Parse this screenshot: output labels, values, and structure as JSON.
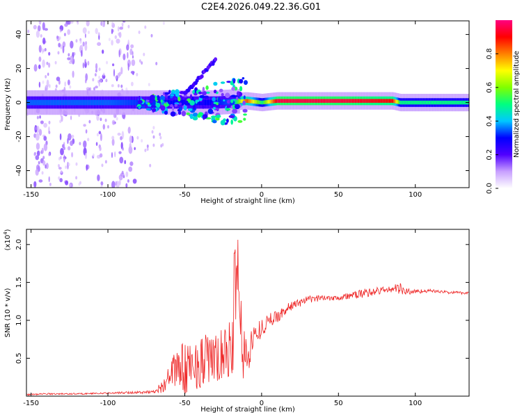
{
  "title": "C2E4.2026.049.22.36.G01",
  "chart_data": [
    {
      "type": "heatmap",
      "xlabel": "Height of straight line (km)",
      "ylabel": "Frequency (Hz)",
      "xlim": [
        -153,
        135
      ],
      "ylim": [
        -50,
        48
      ],
      "xticks": [
        -150,
        -100,
        -50,
        0,
        50,
        100
      ],
      "yticks": [
        -40,
        -20,
        0,
        20,
        40
      ],
      "colorbar": {
        "label": "Normalized spectral amplitude",
        "range": [
          0,
          1
        ],
        "ticks": [
          0.0,
          0.2,
          0.4,
          0.6,
          0.8
        ],
        "colors": [
          "#ffffff",
          "#c8a0ff",
          "#5000ff",
          "#0000ff",
          "#00c8ff",
          "#00ff80",
          "#80ff00",
          "#ffff00",
          "#ff8000",
          "#ff0000",
          "#ff0080"
        ]
      },
      "ridge": {
        "x": [
          -153,
          -100,
          -60,
          -40,
          -30,
          -20,
          -10,
          0,
          10,
          50,
          85,
          90,
          135
        ],
        "y": [
          0,
          0,
          0,
          0,
          0,
          0.5,
          1,
          0,
          1,
          1,
          1,
          0,
          0
        ],
        "amplitude": [
          0.35,
          0.35,
          0.3,
          0.3,
          0.3,
          0.35,
          0.85,
          0.5,
          0.95,
          0.95,
          0.9,
          0.5,
          0.5
        ]
      },
      "arc": {
        "x": [
          -50,
          -45,
          -40,
          -35,
          -30
        ],
        "y": [
          5,
          10,
          15,
          20,
          25
        ]
      }
    },
    {
      "type": "line",
      "xlabel": "Height of straight line (km)",
      "ylabel": "SNR (10 * v/v)",
      "scale_label": "(x10",
      "scale_exponent": "4",
      "scale_close": ")",
      "xlim": [
        -153,
        135
      ],
      "ylim": [
        0,
        2.2
      ],
      "xticks": [
        -150,
        -100,
        -50,
        0,
        50,
        100
      ],
      "yticks": [
        0.5,
        1.0,
        1.5,
        2.0
      ],
      "line_color": "#ee2222",
      "series": [
        {
          "x": [
            -153,
            -140,
            -120,
            -100,
            -80,
            -70,
            -65,
            -60,
            -55,
            -50,
            -45,
            -40,
            -35,
            -30,
            -25,
            -20,
            -17,
            -15,
            -12,
            -10,
            -5,
            0,
            5,
            10,
            20,
            30,
            40,
            50,
            60,
            70,
            80,
            88,
            90,
            92,
            100,
            110,
            120,
            135
          ],
          "y": [
            0.02,
            0.03,
            0.03,
            0.04,
            0.05,
            0.06,
            0.12,
            0.25,
            0.4,
            0.35,
            0.4,
            0.45,
            0.5,
            0.45,
            0.55,
            0.6,
            0.9,
            1.1,
            0.6,
            0.5,
            0.8,
            0.9,
            1.0,
            1.05,
            1.2,
            1.27,
            1.3,
            1.3,
            1.33,
            1.37,
            1.4,
            1.42,
            1.45,
            1.38,
            1.38,
            1.39,
            1.37,
            1.36
          ],
          "amplitude": [
            0.01,
            0.01,
            0.01,
            0.01,
            0.02,
            0.02,
            0.08,
            0.15,
            0.28,
            0.35,
            0.35,
            0.35,
            0.35,
            0.35,
            0.35,
            0.4,
            0.6,
            0.5,
            0.45,
            0.3,
            0.15,
            0.12,
            0.1,
            0.08,
            0.06,
            0.05,
            0.04,
            0.04,
            0.05,
            0.06,
            0.05,
            0.06,
            0.12,
            0.06,
            0.03,
            0.02,
            0.02,
            0.02
          ]
        }
      ]
    }
  ]
}
